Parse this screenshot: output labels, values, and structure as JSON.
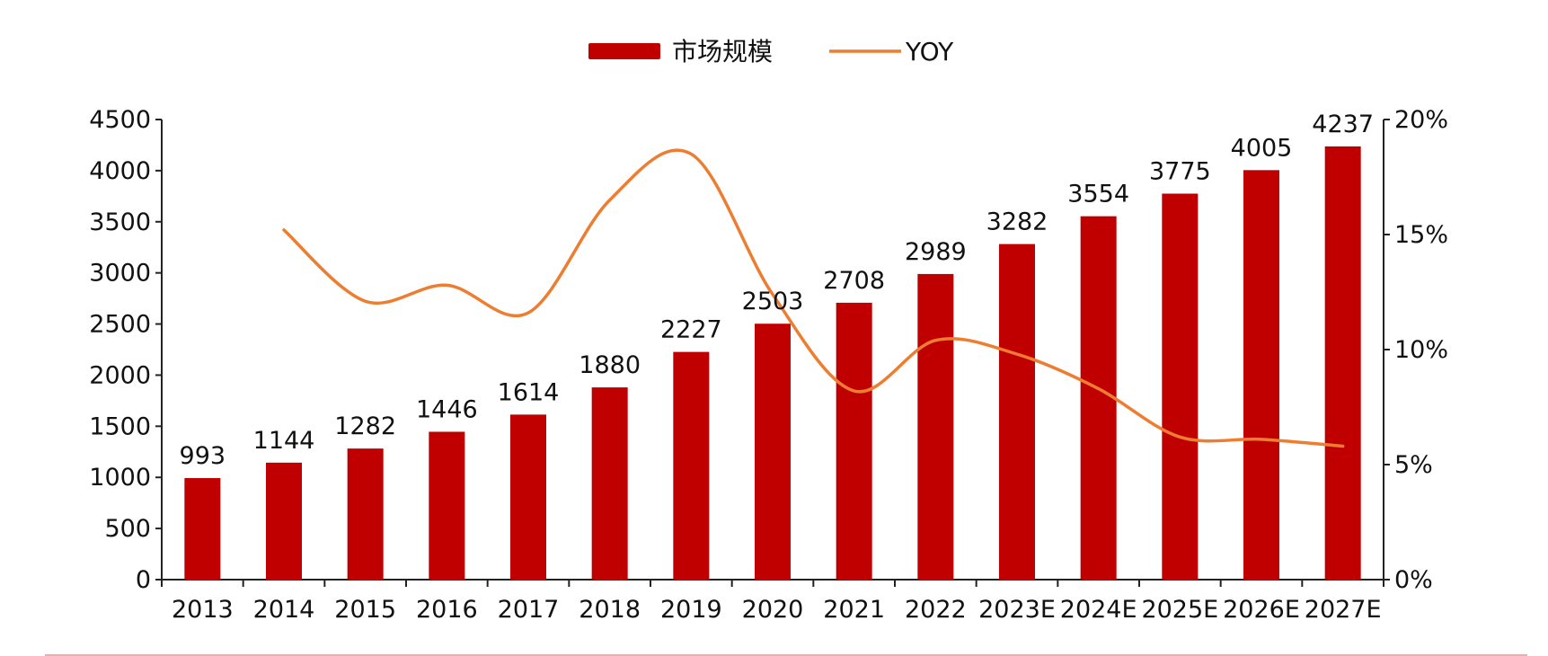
{
  "chart_data": {
    "type": "bar",
    "categories": [
      "2013",
      "2014",
      "2015",
      "2016",
      "2017",
      "2018",
      "2019",
      "2020",
      "2021",
      "2022",
      "2023E",
      "2024E",
      "2025E",
      "2026E",
      "2027E"
    ],
    "series": [
      {
        "name": "市场规模",
        "type": "bar",
        "axis": "left",
        "color": "#C00000",
        "values": [
          993,
          1144,
          1282,
          1446,
          1614,
          1880,
          2227,
          2503,
          2708,
          2989,
          3282,
          3554,
          3775,
          4005,
          4237
        ]
      },
      {
        "name": "YOY",
        "type": "line",
        "axis": "right",
        "color": "#ED7D31",
        "values": [
          null,
          15.2,
          12.1,
          12.8,
          11.6,
          16.5,
          18.5,
          12.4,
          8.2,
          10.4,
          9.8,
          8.3,
          6.2,
          6.1,
          5.8
        ]
      }
    ],
    "data_labels": [
      "993",
      "1144",
      "1282",
      "1446",
      "1614",
      "1880",
      "2227",
      "2503",
      "2708",
      "2989",
      "3282",
      "3554",
      "3775",
      "4005",
      "4237"
    ],
    "y_left": {
      "ylim": [
        0,
        4500
      ],
      "ticks": [
        0,
        500,
        1000,
        1500,
        2000,
        2500,
        3000,
        3500,
        4000,
        4500
      ]
    },
    "y_right": {
      "ylim": [
        0,
        20
      ],
      "ticks": [
        "0%",
        "5%",
        "10%",
        "15%",
        "20%"
      ]
    },
    "legend": {
      "position": "top-center"
    },
    "grid": false
  }
}
